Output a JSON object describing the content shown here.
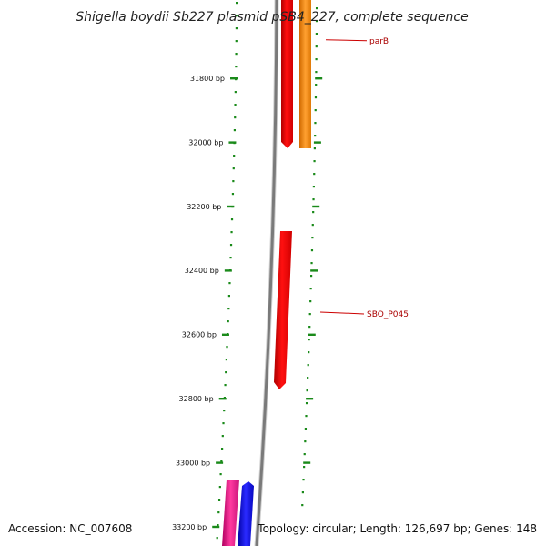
{
  "title": "Shigella boydii Sb227 plasmid pSB4_227, complete sequence",
  "footer": {
    "accession": "Accession: NC_007608",
    "topology": "Topology: circular; Length: 126,697 bp; Genes: 148"
  },
  "ticks": [
    {
      "bp": 31800,
      "label": "31800 bp"
    },
    {
      "bp": 32000,
      "label": "32000 bp"
    },
    {
      "bp": 32200,
      "label": "32200 bp"
    },
    {
      "bp": 32400,
      "label": "32400 bp"
    },
    {
      "bp": 32600,
      "label": "32600 bp"
    },
    {
      "bp": 32800,
      "label": "32800 bp"
    },
    {
      "bp": 33000,
      "label": "33000 bp"
    },
    {
      "bp": 33200,
      "label": "33200 bp"
    }
  ],
  "gene_labels": [
    {
      "name": "parB",
      "bp": 31680
    },
    {
      "name": "SBO_P045",
      "bp": 32530
    }
  ],
  "colors": {
    "tick": "#1a8a1a",
    "backbone": "#888888",
    "gene_red": "#ee0000",
    "gene_orange": "#f08a10",
    "gene_magenta": "#e0208a",
    "gene_blue": "#1010e0",
    "label_line": "#cc0000"
  }
}
